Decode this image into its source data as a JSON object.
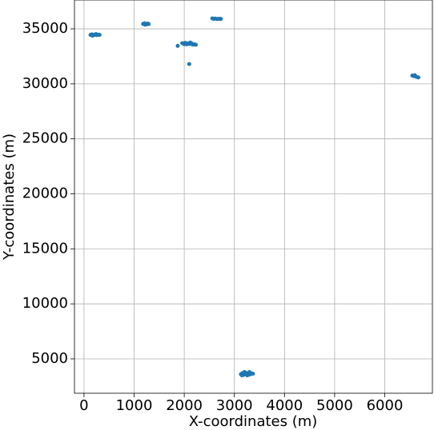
{
  "chart_data": {
    "type": "scatter",
    "xlabel": "X-coordinates (m)",
    "ylabel": "Y-coordinates (m)",
    "x": [
      130,
      160,
      190,
      220,
      250,
      280,
      310,
      170,
      240,
      1180,
      1210,
      1240,
      1270,
      1290,
      1220,
      1960,
      1990,
      2020,
      2050,
      2080,
      2110,
      2140,
      2170,
      2200,
      2230,
      2000,
      2120,
      1870,
      2100,
      2560,
      2590,
      2620,
      2660,
      2700,
      2730,
      6550,
      6580,
      6610,
      6640,
      6670,
      6600,
      3130,
      3160,
      3190,
      3220,
      3250,
      3280,
      3310,
      3340,
      3370,
      3200,
      3300,
      3150,
      3260
    ],
    "values": [
      34450,
      34500,
      34420,
      34480,
      34430,
      34470,
      34450,
      34380,
      34520,
      35450,
      35500,
      35400,
      35480,
      35430,
      35380,
      33700,
      33650,
      33720,
      33600,
      33680,
      33620,
      33700,
      33560,
      33600,
      33550,
      33600,
      33750,
      33450,
      31800,
      35950,
      35900,
      35930,
      35890,
      35910,
      35900,
      30750,
      30700,
      30680,
      30620,
      30580,
      30780,
      3600,
      3700,
      3550,
      3750,
      3620,
      3720,
      3580,
      3680,
      3650,
      3800,
      3800,
      3500,
      3500
    ],
    "color": "#1f77b4",
    "xlim": [
      -190,
      6950
    ],
    "ylim": [
      1875,
      37620
    ],
    "xticks": [
      0,
      1000,
      2000,
      3000,
      4000,
      5000,
      6000
    ],
    "yticks": [
      5000,
      10000,
      15000,
      20000,
      25000,
      30000,
      35000
    ],
    "grid": true
  }
}
